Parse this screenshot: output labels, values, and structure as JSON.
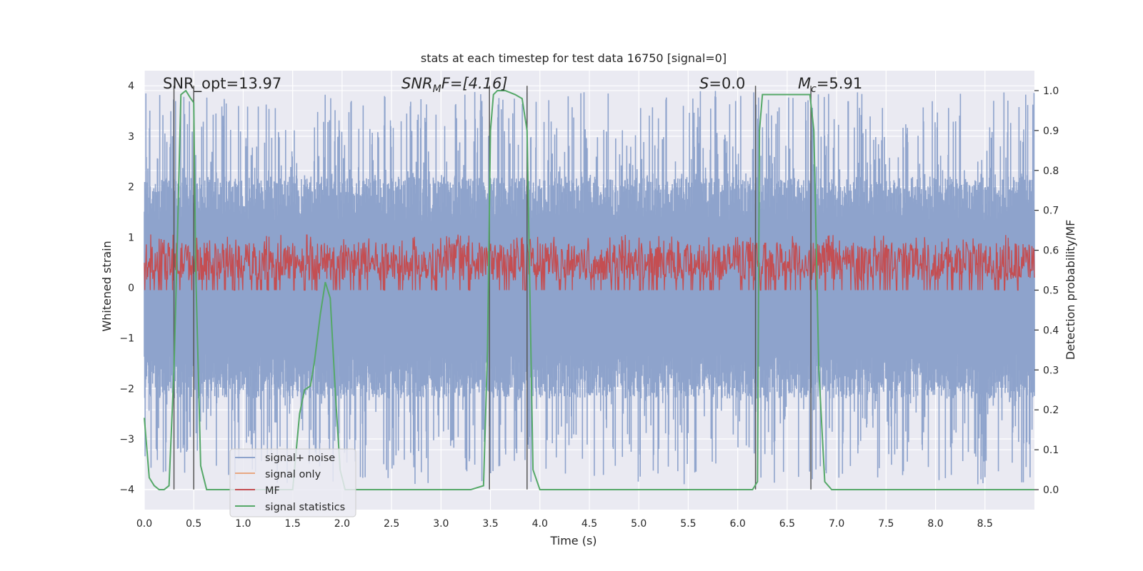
{
  "chart_data": {
    "type": "line",
    "title": "stats at each timestep for test data 16750 [signal=0]",
    "xlabel": "Time (s)",
    "ylabel": "Whitened strain",
    "y2label": "Detection probability/MF",
    "xlim": [
      0.0,
      9.0
    ],
    "ylim": [
      -4.4,
      4.3
    ],
    "y2lim": [
      -0.05,
      1.05
    ],
    "xticks": [
      "0.0",
      "0.5",
      "1.0",
      "1.5",
      "2.0",
      "2.5",
      "3.0",
      "3.5",
      "4.0",
      "4.5",
      "5.0",
      "5.5",
      "6.0",
      "6.5",
      "7.0",
      "7.5",
      "8.0",
      "8.5"
    ],
    "yticks": [
      {
        "value": 4,
        "label": "4"
      },
      {
        "value": 3,
        "label": "3"
      },
      {
        "value": 2,
        "label": "2"
      },
      {
        "value": 1,
        "label": "1"
      },
      {
        "value": 0,
        "label": "0"
      },
      {
        "value": -1,
        "label": "−1"
      },
      {
        "value": -2,
        "label": "−2"
      },
      {
        "value": -3,
        "label": "−3"
      },
      {
        "value": -4,
        "label": "−4"
      }
    ],
    "y2ticks": [
      "0.0",
      "0.1",
      "0.2",
      "0.3",
      "0.4",
      "0.5",
      "0.6",
      "0.7",
      "0.8",
      "0.9",
      "1.0"
    ],
    "grid": true,
    "legend_position": "lower-left",
    "annotations": {
      "snr_opt": "SNR_opt=13.97",
      "snr_mf_pre": "SNR",
      "snr_mf_sub": "M",
      "snr_mf_post": "F=[4.16]",
      "s_italic": "S",
      "s_rest": "=0.0",
      "mc_italic": "M",
      "mc_sub": "c",
      "mc_rest": "=5.91"
    },
    "vertical_lines_x": [
      0.3,
      0.5,
      3.49,
      3.87,
      6.18,
      6.74
    ],
    "series": [
      {
        "name": "signal+ noise",
        "color": "#8ea3cc",
        "amplitude_envelope": {
          "base": 2.0,
          "peak": 3.9,
          "min": -3.9
        },
        "sample_rate_hz": 250
      },
      {
        "name": "signal only",
        "color": "#e8a882",
        "values": []
      },
      {
        "name": "MF",
        "color": "#c44e52",
        "axis": "right",
        "range": [
          0.5,
          0.62
        ]
      },
      {
        "name": "signal statistics",
        "color": "#55a868",
        "axis": "right",
        "x": [
          0.0,
          0.05,
          0.1,
          0.15,
          0.2,
          0.25,
          0.3,
          0.33,
          0.37,
          0.42,
          0.47,
          0.5,
          0.52,
          0.57,
          0.63,
          0.7,
          0.8,
          0.9,
          1.0,
          1.1,
          1.2,
          1.3,
          1.4,
          1.5,
          1.57,
          1.62,
          1.68,
          1.72,
          1.78,
          1.83,
          1.88,
          1.93,
          1.98,
          2.03,
          2.1,
          2.3,
          2.6,
          2.9,
          3.0,
          3.3,
          3.43,
          3.47,
          3.5,
          3.53,
          3.57,
          3.65,
          3.75,
          3.82,
          3.87,
          3.93,
          4.0,
          4.2,
          4.5,
          5.0,
          5.5,
          6.0,
          6.15,
          6.2,
          6.22,
          6.25,
          6.4,
          6.6,
          6.73,
          6.77,
          6.82,
          6.88,
          6.95,
          7.2,
          7.5,
          8.0,
          8.5,
          9.0
        ],
        "values": [
          0.18,
          0.03,
          0.01,
          0.0,
          0.0,
          0.01,
          0.3,
          0.58,
          0.99,
          1.0,
          0.98,
          0.97,
          0.55,
          0.06,
          0.0,
          0.0,
          0.0,
          0.0,
          0.0,
          0.0,
          0.0,
          0.0,
          0.0,
          0.0,
          0.19,
          0.25,
          0.26,
          0.32,
          0.44,
          0.52,
          0.48,
          0.25,
          0.05,
          0.0,
          0.0,
          0.0,
          0.0,
          0.0,
          0.0,
          0.0,
          0.01,
          0.35,
          0.9,
          0.99,
          1.0,
          1.0,
          0.99,
          0.98,
          0.9,
          0.05,
          0.0,
          0.0,
          0.0,
          0.0,
          0.0,
          0.0,
          0.0,
          0.02,
          0.9,
          0.99,
          0.99,
          0.99,
          0.99,
          0.9,
          0.3,
          0.02,
          0.0,
          0.0,
          0.0,
          0.0,
          0.0,
          0.0
        ]
      }
    ]
  }
}
